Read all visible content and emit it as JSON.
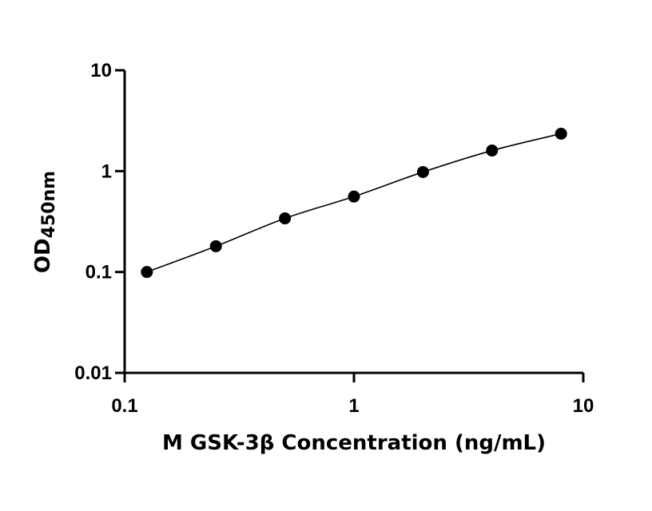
{
  "chart_data": {
    "type": "scatter",
    "xscale": "log",
    "yscale": "log",
    "xlim": [
      0.1,
      10
    ],
    "ylim": [
      0.01,
      10
    ],
    "xticks": [
      "0.1",
      "1",
      "10"
    ],
    "yticks": [
      "0.01",
      "0.1",
      "1",
      "10"
    ],
    "xlabel": "M GSK-3β Concentration (ng/mL)",
    "ylabel_main": "OD",
    "ylabel_sub": "450nm",
    "grid": false,
    "series": [
      {
        "x": [
          0.125,
          0.25,
          0.5,
          1,
          2,
          4,
          8
        ],
        "y": [
          0.1,
          0.18,
          0.34,
          0.56,
          0.98,
          1.6,
          2.35
        ],
        "fit_curve": true
      }
    ]
  }
}
